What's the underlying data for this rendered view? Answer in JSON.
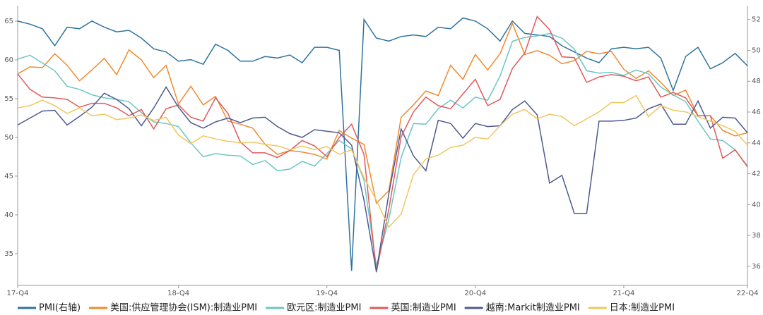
{
  "chart_data": {
    "type": "line",
    "categories": [
      "17-Q4",
      null,
      null,
      null,
      null,
      null,
      null,
      null,
      null,
      null,
      null,
      null,
      null,
      "18-Q4",
      null,
      null,
      null,
      null,
      null,
      null,
      null,
      null,
      null,
      null,
      null,
      "19-Q4",
      null,
      null,
      null,
      null,
      null,
      null,
      null,
      null,
      null,
      null,
      null,
      "20-Q4",
      null,
      null,
      null,
      null,
      null,
      null,
      null,
      null,
      null,
      null,
      null,
      "21-Q4",
      null,
      null,
      null,
      null,
      null,
      null,
      null,
      null,
      null,
      "22-Q4"
    ],
    "ylim": [
      30.9,
      67
    ],
    "yticks": [
      35,
      40,
      45,
      50,
      55,
      60,
      65
    ],
    "y2lim": [
      34.76,
      52.9
    ],
    "y2ticks": [
      36,
      38,
      40,
      42,
      44,
      46,
      48,
      50,
      52
    ],
    "legend": "bottom",
    "series": [
      {
        "name": "PMI(右轴)",
        "color": "#2e73a0",
        "axis": "y2",
        "values": [
          51.9,
          51.7,
          51.4,
          50.3,
          51.5,
          51.4,
          51.9,
          51.5,
          51.2,
          51.3,
          50.8,
          50.1,
          49.9,
          49.3,
          49.4,
          49.1,
          50.4,
          50.0,
          49.3,
          49.3,
          49.6,
          49.5,
          49.7,
          49.2,
          50.2,
          50.2,
          50.0,
          35.7,
          52.0,
          50.8,
          50.6,
          50.9,
          51.0,
          50.9,
          51.5,
          51.4,
          52.1,
          51.9,
          51.4,
          50.6,
          51.9,
          51.1,
          51.0,
          50.9,
          50.3,
          49.9,
          49.5,
          49.2,
          50.1,
          50.2,
          50.1,
          50.2,
          49.5,
          47.4,
          49.6,
          50.2,
          48.8,
          49.2,
          49.8,
          49.0
        ]
      },
      {
        "name": "美国:供应管理协会(ISM):制造业PMI",
        "color": "#f08b2f",
        "values": [
          58.2,
          59.1,
          59.0,
          60.8,
          59.3,
          57.3,
          58.7,
          60.2,
          58.1,
          61.3,
          60.0,
          57.7,
          59.3,
          54.3,
          56.6,
          54.2,
          55.3,
          52.1,
          51.7,
          51.2,
          49.1,
          47.8,
          48.3,
          48.1,
          47.8,
          47.2,
          50.9,
          49.9,
          49.1,
          41.5,
          43.1,
          52.6,
          54.2,
          56.0,
          55.4,
          59.3,
          57.5,
          60.7,
          58.7,
          60.8,
          64.7,
          60.7,
          61.2,
          60.6,
          59.5,
          59.9,
          61.1,
          60.8,
          61.1,
          58.8,
          57.6,
          58.6,
          57.1,
          55.4,
          56.1,
          52.8,
          52.8,
          50.9,
          50.2,
          50.6
        ]
      },
      {
        "name": "欧元区:制造业PMI",
        "color": "#6cc6c4",
        "values": [
          60.1,
          60.6,
          59.6,
          58.6,
          56.6,
          56.2,
          55.5,
          55.1,
          54.9,
          54.6,
          53.2,
          52.0,
          51.8,
          51.4,
          49.3,
          47.5,
          47.9,
          47.7,
          47.6,
          46.5,
          47.0,
          45.7,
          45.9,
          46.9,
          46.3,
          47.9,
          49.6,
          48.5,
          44.5,
          33.4,
          39.4,
          47.4,
          51.8,
          51.7,
          53.7,
          54.8,
          53.8,
          55.2,
          54.8,
          57.9,
          62.4,
          62.9,
          63.1,
          63.4,
          62.8,
          61.4,
          58.6,
          58.3,
          58.4,
          58.0,
          58.7,
          58.2,
          56.5,
          55.5,
          54.6,
          52.1,
          49.8,
          49.6,
          48.4,
          46.3
        ]
      },
      {
        "name": "英国:制造业PMI",
        "color": "#e05a5a",
        "values": [
          58.2,
          56.2,
          55.2,
          55.1,
          54.9,
          53.9,
          54.4,
          54.4,
          53.8,
          52.8,
          53.6,
          51.1,
          53.7,
          54.2,
          52.6,
          52.1,
          55.1,
          53.1,
          49.4,
          48.0,
          48.0,
          47.4,
          48.3,
          49.6,
          48.9,
          47.5,
          50.0,
          51.7,
          47.8,
          32.6,
          40.7,
          50.1,
          53.3,
          55.2,
          54.1,
          53.7,
          55.6,
          57.5,
          54.1,
          54.9,
          58.9,
          60.9,
          65.6,
          63.9,
          60.4,
          60.3,
          57.1,
          57.8,
          58.1,
          57.9,
          57.3,
          57.8,
          55.2,
          55.8,
          55.1,
          52.8,
          52.8,
          47.3,
          48.4,
          46.2
        ]
      },
      {
        "name": "越南:Markit制造业PMI",
        "color": "#4e5a8f",
        "values": [
          51.6,
          52.5,
          53.4,
          53.5,
          51.6,
          52.7,
          53.9,
          55.7,
          54.9,
          53.7,
          51.5,
          53.8,
          56.5,
          53.9,
          51.9,
          51.2,
          52.0,
          52.5,
          51.9,
          52.5,
          52.6,
          51.4,
          50.5,
          50.0,
          51.0,
          50.8,
          50.6,
          49.0,
          41.9,
          32.7,
          42.7,
          51.1,
          47.6,
          45.7,
          52.2,
          51.8,
          49.9,
          51.8,
          51.4,
          51.5,
          53.6,
          54.7,
          52.9,
          44.1,
          45.1,
          40.2,
          40.2,
          52.1,
          52.1,
          52.2,
          52.5,
          53.7,
          54.3,
          51.7,
          51.7,
          54.7,
          51.2,
          52.6,
          52.5,
          50.6
        ]
      },
      {
        "name": "日本:制造业PMI",
        "color": "#f0c75e",
        "values": [
          53.8,
          54.1,
          54.8,
          54.1,
          53.1,
          53.8,
          52.8,
          53.0,
          52.3,
          52.5,
          52.9,
          52.2,
          52.6,
          50.3,
          49.2,
          50.2,
          49.8,
          49.5,
          49.3,
          49.4,
          49.1,
          48.9,
          48.4,
          48.9,
          48.4,
          48.8,
          47.8,
          48.4,
          44.8,
          41.9,
          38.4,
          40.1,
          45.2,
          47.2,
          47.7,
          48.7,
          49.0,
          50.0,
          49.8,
          51.5,
          53.0,
          53.6,
          52.4,
          53.0,
          52.7,
          51.5,
          52.4,
          53.3,
          54.5,
          54.5,
          55.4,
          52.7,
          54.1,
          53.5,
          53.3,
          52.7,
          52.1,
          51.5,
          50.8,
          49.0
        ]
      }
    ]
  }
}
